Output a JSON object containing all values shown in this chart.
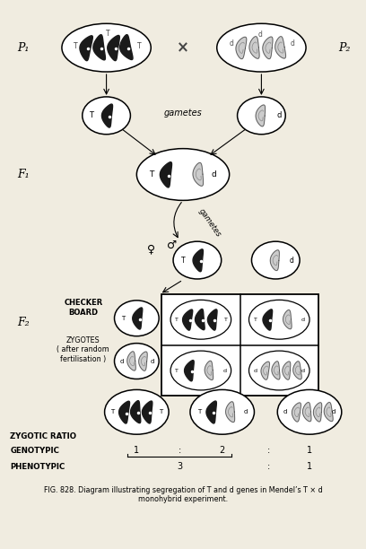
{
  "bg_color": "#f0ece0",
  "p1_label": "P₁",
  "p2_label": "P₂",
  "f1_label": "F₁",
  "f2_label": "F₂",
  "gametes_label": "gametes",
  "gametes_label2": "gametes",
  "checker_label": "CHECKER\nBOARD",
  "zygotes_label": "ZYGOTES\n( after random\nfertilisation )",
  "zygotic_ratio": "ZYGOTIC RATIO",
  "genotypic": "GENOTYPIC",
  "phenotypic": "PHENOTYPIC",
  "ratio_1": "1",
  "ratio_2": "2",
  "ratio_3": "1",
  "phen_3": "3",
  "phen_1": "1",
  "cross_x": "×",
  "female_symbol": "♀",
  "male_symbol": "♂",
  "caption_line1": "FIG. 828. Diagram illustrating segregation of ",
  "caption_bold1": "T",
  "caption_line2": " and ",
  "caption_bold2": "d",
  "caption_line3": " genes in Mendel’s ",
  "caption_bold3": "T",
  "caption_x": " × ",
  "caption_bold4": "d",
  "caption_line4": "",
  "caption_line5": "monohybrid experiment."
}
